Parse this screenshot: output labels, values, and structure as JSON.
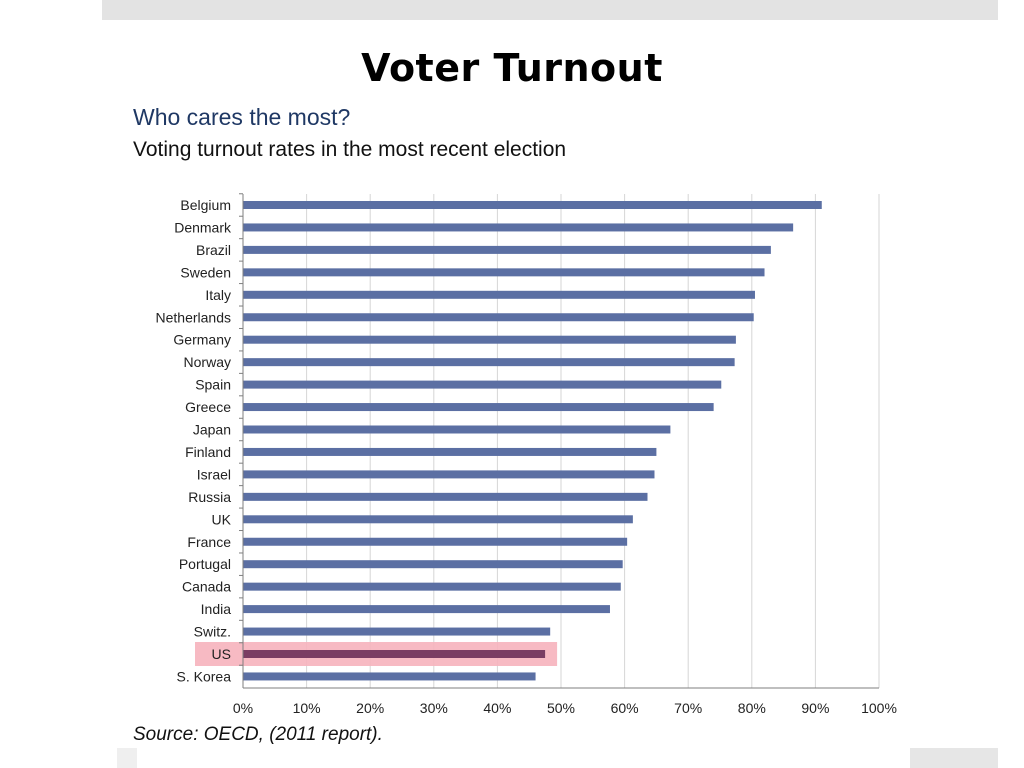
{
  "slide": {
    "title": "Voter Turnout"
  },
  "chart_data": {
    "type": "bar",
    "orientation": "horizontal",
    "title": "Who cares the most?",
    "subtitle": "Voting turnout rates in the most recent election",
    "source": "Source:  OECD, (2011 report).",
    "categories": [
      "Belgium",
      "Denmark",
      "Brazil",
      "Sweden",
      "Italy",
      "Netherlands",
      "Germany",
      "Norway",
      "Spain",
      "Greece",
      "Japan",
      "Finland",
      "Israel",
      "Russia",
      "UK",
      "France",
      "Portugal",
      "Canada",
      "India",
      "Switz.",
      "US",
      "S. Korea"
    ],
    "values": [
      91,
      86.5,
      83,
      82,
      80.5,
      80.3,
      77.5,
      77.3,
      75.2,
      74,
      67.2,
      65,
      64.7,
      63.6,
      61.3,
      60.4,
      59.7,
      59.4,
      57.7,
      48.3,
      47.5,
      46
    ],
    "highlight": "US",
    "xlim": [
      0,
      100
    ],
    "xticks": [
      "0%",
      "10%",
      "20%",
      "30%",
      "40%",
      "50%",
      "60%",
      "70%",
      "80%",
      "90%",
      "100%"
    ],
    "grid": true,
    "colors": {
      "bar": "#5b6fa3",
      "highlight_bar": "#7a3d63",
      "highlight_band": "#f6b3bd",
      "grid": "#d6d6d6",
      "axis": "#7f7f7f",
      "title": "#1f3864"
    }
  }
}
